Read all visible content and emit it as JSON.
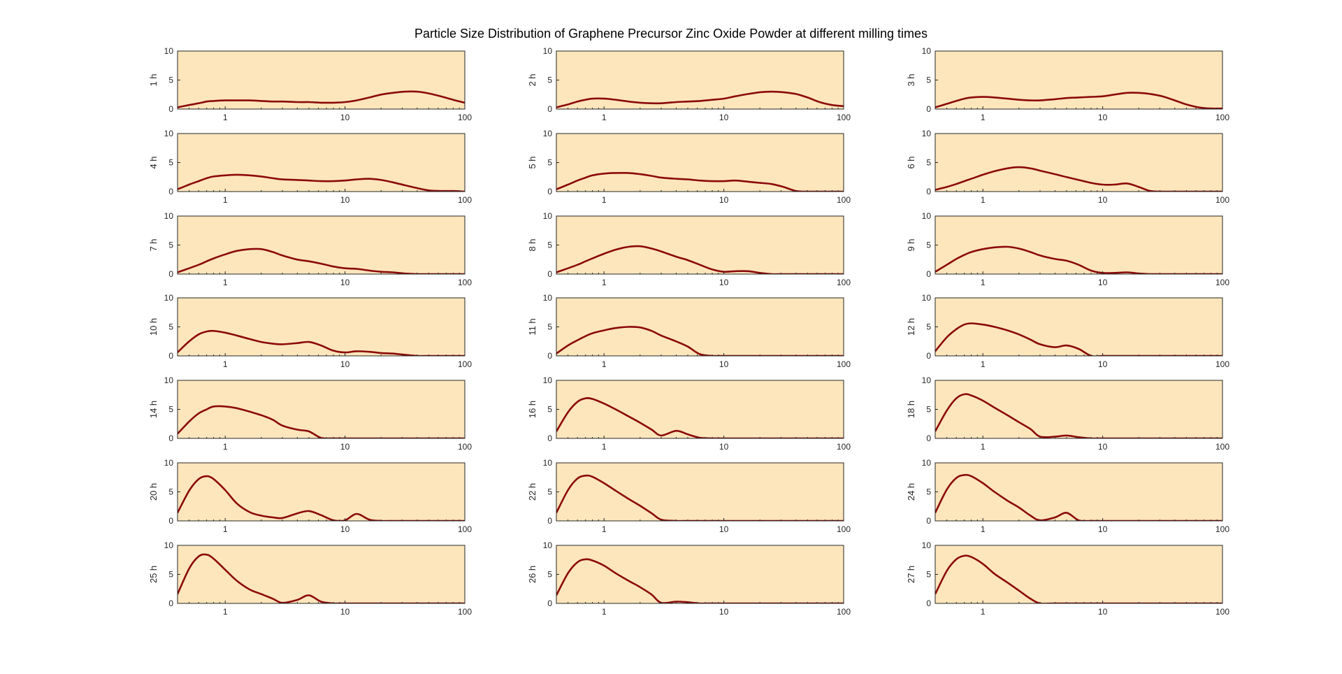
{
  "title": "Particle Size Distribution of Graphene Precursor Zinc Oxide Powder at different milling times",
  "chart_data": {
    "type": "line",
    "title": "Particle Size Distribution of Graphene Precursor Zinc Oxide Powder at different milling times",
    "x_scale": "log",
    "xlim": [
      0.4,
      100
    ],
    "ylim": [
      0,
      10
    ],
    "xticks": [
      1,
      10,
      100
    ],
    "xtick_labels": [
      "1",
      "10",
      "100"
    ],
    "yticks": [
      0,
      5,
      10
    ],
    "ytick_labels": [
      "0",
      "5",
      "10"
    ],
    "grid": false,
    "plot_bg": "#FDE6BB",
    "line_color": "#8B0A0A",
    "x": [
      0.4,
      0.5,
      0.6,
      0.7,
      0.8,
      1,
      1.25,
      1.6,
      2,
      2.5,
      3,
      4,
      5,
      6.3,
      8,
      10,
      12.5,
      16,
      20,
      25,
      31.5,
      40,
      50,
      63,
      80,
      100
    ],
    "subplots": [
      {
        "label": "1 h",
        "values": [
          0.3,
          0.7,
          1.0,
          1.3,
          1.4,
          1.5,
          1.5,
          1.5,
          1.4,
          1.3,
          1.3,
          1.2,
          1.2,
          1.1,
          1.1,
          1.2,
          1.5,
          2.0,
          2.5,
          2.8,
          3.0,
          3.0,
          2.7,
          2.2,
          1.6,
          1.1
        ]
      },
      {
        "label": "2 h",
        "values": [
          0.3,
          0.8,
          1.3,
          1.6,
          1.8,
          1.8,
          1.6,
          1.3,
          1.1,
          1.0,
          1.0,
          1.2,
          1.3,
          1.4,
          1.6,
          1.8,
          2.2,
          2.6,
          2.9,
          3.0,
          2.9,
          2.6,
          2.0,
          1.2,
          0.7,
          0.5
        ]
      },
      {
        "label": "3 h",
        "values": [
          0.3,
          0.9,
          1.4,
          1.8,
          2.0,
          2.1,
          2.0,
          1.8,
          1.6,
          1.5,
          1.5,
          1.7,
          1.9,
          2.0,
          2.1,
          2.2,
          2.5,
          2.8,
          2.8,
          2.6,
          2.2,
          1.5,
          0.8,
          0.3,
          0.1,
          0.1
        ]
      },
      {
        "label": "4 h",
        "values": [
          0.4,
          1.2,
          1.8,
          2.3,
          2.6,
          2.8,
          2.9,
          2.8,
          2.6,
          2.3,
          2.1,
          2.0,
          1.9,
          1.8,
          1.8,
          1.9,
          2.1,
          2.2,
          2.0,
          1.6,
          1.1,
          0.6,
          0.2,
          0.1,
          0.1,
          0.0
        ]
      },
      {
        "label": "5 h",
        "values": [
          0.4,
          1.2,
          1.9,
          2.4,
          2.8,
          3.1,
          3.2,
          3.2,
          3.0,
          2.7,
          2.4,
          2.2,
          2.1,
          1.9,
          1.8,
          1.8,
          1.9,
          1.7,
          1.5,
          1.3,
          0.8,
          0.1,
          0.0,
          0.0,
          0.0,
          0.0
        ]
      },
      {
        "label": "6 h",
        "values": [
          0.3,
          0.8,
          1.3,
          1.8,
          2.2,
          2.9,
          3.5,
          4.0,
          4.2,
          4.0,
          3.6,
          3.0,
          2.5,
          2.0,
          1.5,
          1.2,
          1.2,
          1.4,
          0.8,
          0.1,
          0.0,
          0.0,
          0.0,
          0.0,
          0.0,
          0.0
        ]
      },
      {
        "label": "7 h",
        "values": [
          0.3,
          1.0,
          1.6,
          2.2,
          2.7,
          3.4,
          4.0,
          4.3,
          4.3,
          3.8,
          3.2,
          2.5,
          2.2,
          1.8,
          1.3,
          1.0,
          0.9,
          0.6,
          0.4,
          0.3,
          0.1,
          0.0,
          0.0,
          0.0,
          0.0,
          0.0
        ]
      },
      {
        "label": "8 h",
        "values": [
          0.3,
          1.0,
          1.6,
          2.2,
          2.7,
          3.5,
          4.2,
          4.7,
          4.8,
          4.4,
          3.9,
          3.0,
          2.4,
          1.6,
          0.8,
          0.4,
          0.5,
          0.5,
          0.2,
          0.0,
          0.0,
          0.0,
          0.0,
          0.0,
          0.0,
          0.0
        ]
      },
      {
        "label": "9 h",
        "values": [
          0.4,
          1.6,
          2.6,
          3.3,
          3.8,
          4.3,
          4.6,
          4.7,
          4.4,
          3.8,
          3.2,
          2.6,
          2.3,
          1.6,
          0.6,
          0.2,
          0.2,
          0.3,
          0.1,
          0.0,
          0.0,
          0.0,
          0.0,
          0.0,
          0.0,
          0.0
        ]
      },
      {
        "label": "10 h",
        "values": [
          0.6,
          2.5,
          3.7,
          4.2,
          4.3,
          4.0,
          3.5,
          2.9,
          2.4,
          2.1,
          2.0,
          2.2,
          2.4,
          1.8,
          0.9,
          0.6,
          0.8,
          0.7,
          0.5,
          0.4,
          0.2,
          0.0,
          0.0,
          0.0,
          0.0,
          0.0
        ]
      },
      {
        "label": "11 h",
        "values": [
          0.4,
          1.8,
          2.7,
          3.4,
          3.9,
          4.4,
          4.8,
          5.0,
          4.9,
          4.3,
          3.5,
          2.5,
          1.6,
          0.3,
          0.0,
          0.0,
          0.0,
          0.0,
          0.0,
          0.0,
          0.0,
          0.0,
          0.0,
          0.0,
          0.0,
          0.0
        ]
      },
      {
        "label": "12 h",
        "values": [
          0.8,
          3.2,
          4.6,
          5.4,
          5.6,
          5.4,
          5.0,
          4.4,
          3.7,
          2.8,
          2.0,
          1.5,
          1.8,
          1.2,
          0.0,
          0.0,
          0.0,
          0.0,
          0.0,
          0.0,
          0.0,
          0.0,
          0.0,
          0.0,
          0.0,
          0.0
        ]
      },
      {
        "label": "14 h",
        "values": [
          0.8,
          2.9,
          4.3,
          5.0,
          5.5,
          5.5,
          5.2,
          4.6,
          4.0,
          3.2,
          2.2,
          1.5,
          1.2,
          0.1,
          0.0,
          0.0,
          0.0,
          0.0,
          0.0,
          0.0,
          0.0,
          0.0,
          0.0,
          0.0,
          0.0,
          0.0
        ]
      },
      {
        "label": "16 h",
        "values": [
          1.2,
          4.5,
          6.3,
          6.9,
          6.8,
          6.0,
          5.0,
          3.8,
          2.7,
          1.5,
          0.5,
          1.3,
          0.7,
          0.1,
          0.0,
          0.0,
          0.0,
          0.0,
          0.0,
          0.0,
          0.0,
          0.0,
          0.0,
          0.0,
          0.0,
          0.0
        ]
      },
      {
        "label": "18 h",
        "values": [
          1.2,
          4.8,
          6.9,
          7.6,
          7.4,
          6.5,
          5.3,
          4.0,
          2.8,
          1.6,
          0.3,
          0.3,
          0.5,
          0.2,
          0.0,
          0.0,
          0.0,
          0.0,
          0.0,
          0.0,
          0.0,
          0.0,
          0.0,
          0.0,
          0.0,
          0.0
        ]
      },
      {
        "label": "20 h",
        "values": [
          1.4,
          5.2,
          7.2,
          7.7,
          7.2,
          5.3,
          3.0,
          1.5,
          0.9,
          0.6,
          0.5,
          1.3,
          1.7,
          1.0,
          0.1,
          0.1,
          1.2,
          0.2,
          0.0,
          0.0,
          0.0,
          0.0,
          0.0,
          0.0,
          0.0,
          0.0
        ]
      },
      {
        "label": "22 h",
        "values": [
          1.4,
          5.3,
          7.3,
          7.8,
          7.6,
          6.5,
          5.2,
          3.8,
          2.6,
          1.3,
          0.2,
          0.0,
          0.0,
          0.0,
          0.0,
          0.0,
          0.0,
          0.0,
          0.0,
          0.0,
          0.0,
          0.0,
          0.0,
          0.0,
          0.0,
          0.0
        ]
      },
      {
        "label": "24 h",
        "values": [
          1.4,
          5.4,
          7.4,
          7.9,
          7.7,
          6.5,
          5.0,
          3.5,
          2.3,
          0.9,
          0.1,
          0.6,
          1.4,
          0.1,
          0.0,
          0.0,
          0.0,
          0.0,
          0.0,
          0.0,
          0.0,
          0.0,
          0.0,
          0.0,
          0.0,
          0.0
        ]
      },
      {
        "label": "25 h",
        "values": [
          1.6,
          6.0,
          8.1,
          8.4,
          7.7,
          5.8,
          3.9,
          2.4,
          1.6,
          0.8,
          0.1,
          0.6,
          1.4,
          0.3,
          0.0,
          0.0,
          0.0,
          0.0,
          0.0,
          0.0,
          0.0,
          0.0,
          0.0,
          0.0,
          0.0,
          0.0
        ]
      },
      {
        "label": "26 h",
        "values": [
          1.4,
          5.2,
          7.1,
          7.6,
          7.4,
          6.5,
          5.2,
          3.9,
          2.8,
          1.5,
          0.1,
          0.3,
          0.2,
          0.0,
          0.0,
          0.0,
          0.0,
          0.0,
          0.0,
          0.0,
          0.0,
          0.0,
          0.0,
          0.0,
          0.0,
          0.0
        ]
      },
      {
        "label": "27 h",
        "values": [
          1.6,
          5.6,
          7.6,
          8.2,
          8.0,
          6.8,
          5.1,
          3.6,
          2.2,
          0.8,
          0.0,
          0.0,
          0.0,
          0.0,
          0.0,
          0.0,
          0.0,
          0.0,
          0.0,
          0.0,
          0.0,
          0.0,
          0.0,
          0.0,
          0.0,
          0.0
        ]
      }
    ]
  }
}
